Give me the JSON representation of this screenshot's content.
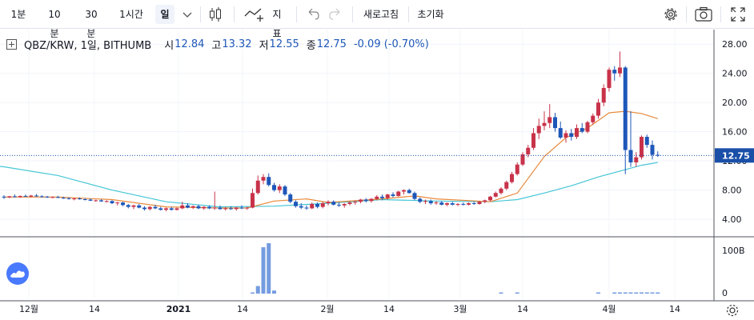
{
  "toolbar": {
    "intervals": [
      "1분",
      "10분",
      "30분",
      "1시간",
      "일"
    ],
    "active_interval": "일",
    "indicators_label": "지표",
    "refresh_label": "새로고침",
    "reset_label": "초기화"
  },
  "legend": {
    "symbol": "QBZ/KRW, 1일, BITHUMB",
    "open_label": "시",
    "open": "12.84",
    "high_label": "고",
    "high": "13.32",
    "low_label": "저",
    "low": "12.55",
    "close_label": "종",
    "close": "12.75",
    "change": "-0.09 (-0.70%)"
  },
  "colors": {
    "up": "#c8334a",
    "down": "#1e57b9",
    "ma_short": "#e8893a",
    "ma_long": "#45c6d6",
    "volume": "#5c8ad9",
    "price_badge": "#1a4fa8"
  },
  "chart_data": {
    "type": "candlestick",
    "price_axis": {
      "ticks": [
        "28.00",
        "24.00",
        "20.00",
        "16.00",
        "12.00",
        "8.00",
        "4.00"
      ],
      "ylim": [
        1.6,
        30.0
      ]
    },
    "volume_axis": {
      "ticks": [
        "100B",
        "0"
      ]
    },
    "current_price_label": "12.75",
    "x_ticks": [
      "12월",
      "14",
      "2021",
      "14",
      "2월",
      "14",
      "3월",
      "14",
      "4월",
      "14"
    ],
    "candles": [
      [
        7.1,
        7.3,
        6.8,
        7.0
      ],
      [
        7.0,
        7.2,
        6.9,
        7.15
      ],
      [
        7.15,
        7.4,
        7.0,
        7.05
      ],
      [
        7.05,
        7.25,
        6.95,
        7.2
      ],
      [
        7.2,
        7.4,
        7.1,
        7.1
      ],
      [
        7.1,
        7.35,
        7.0,
        7.25
      ],
      [
        7.25,
        7.45,
        7.1,
        7.15
      ],
      [
        7.15,
        7.3,
        7.0,
        7.1
      ],
      [
        7.1,
        7.2,
        6.95,
        7.0
      ],
      [
        7.0,
        7.15,
        6.9,
        7.05
      ],
      [
        7.05,
        7.2,
        6.9,
        6.95
      ],
      [
        6.95,
        7.1,
        6.8,
        6.9
      ],
      [
        6.9,
        7.0,
        6.7,
        6.8
      ],
      [
        6.8,
        6.95,
        6.6,
        6.85
      ],
      [
        6.85,
        7.0,
        6.7,
        6.75
      ],
      [
        6.75,
        6.9,
        6.6,
        6.7
      ],
      [
        6.7,
        6.85,
        6.5,
        6.55
      ],
      [
        6.55,
        6.7,
        6.4,
        6.6
      ],
      [
        6.6,
        6.75,
        6.4,
        6.45
      ],
      [
        6.45,
        6.6,
        6.3,
        6.5
      ],
      [
        6.5,
        6.6,
        6.1,
        6.2
      ],
      [
        6.2,
        6.4,
        5.9,
        6.3
      ],
      [
        6.3,
        6.4,
        5.8,
        5.95
      ],
      [
        5.95,
        6.1,
        5.5,
        5.7
      ],
      [
        5.7,
        6.0,
        5.4,
        5.9
      ],
      [
        5.9,
        6.1,
        5.5,
        5.6
      ],
      [
        5.6,
        5.8,
        5.2,
        5.4
      ],
      [
        5.4,
        5.8,
        5.2,
        5.7
      ],
      [
        5.7,
        6.0,
        5.4,
        5.5
      ],
      [
        5.5,
        5.7,
        5.2,
        5.3
      ],
      [
        5.3,
        5.6,
        5.1,
        5.5
      ],
      [
        5.5,
        5.7,
        5.2,
        5.3
      ],
      [
        5.3,
        5.6,
        5.2,
        5.5
      ],
      [
        5.5,
        6.4,
        5.4,
        5.9
      ],
      [
        5.9,
        6.2,
        5.5,
        5.6
      ],
      [
        5.6,
        5.9,
        5.4,
        5.8
      ],
      [
        5.8,
        6.0,
        5.4,
        5.5
      ],
      [
        5.5,
        5.8,
        5.3,
        5.7
      ],
      [
        5.7,
        5.9,
        5.4,
        5.5
      ],
      [
        5.5,
        7.8,
        5.3,
        5.6
      ],
      [
        5.6,
        5.9,
        5.3,
        5.4
      ],
      [
        5.4,
        5.7,
        5.2,
        5.5
      ],
      [
        5.5,
        5.8,
        5.3,
        5.4
      ],
      [
        5.4,
        5.7,
        5.2,
        5.6
      ],
      [
        5.6,
        5.9,
        5.4,
        5.5
      ],
      [
        5.5,
        5.7,
        5.3,
        5.6
      ],
      [
        5.6,
        8.2,
        5.5,
        7.6
      ],
      [
        7.6,
        10.0,
        7.4,
        9.3
      ],
      [
        9.3,
        10.2,
        8.8,
        9.8
      ],
      [
        9.8,
        10.3,
        8.5,
        8.7
      ],
      [
        8.7,
        9.0,
        7.8,
        8.0
      ],
      [
        8.0,
        8.8,
        7.6,
        8.5
      ],
      [
        8.5,
        8.7,
        7.2,
        7.4
      ],
      [
        7.4,
        7.6,
        6.2,
        6.4
      ],
      [
        6.4,
        6.6,
        5.6,
        5.8
      ],
      [
        5.8,
        6.2,
        5.4,
        5.6
      ],
      [
        5.6,
        5.9,
        5.3,
        5.5
      ],
      [
        5.5,
        6.3,
        5.4,
        6.1
      ],
      [
        6.1,
        6.3,
        5.5,
        5.7
      ],
      [
        5.7,
        6.4,
        5.5,
        6.2
      ],
      [
        6.2,
        6.6,
        5.9,
        6.4
      ],
      [
        6.4,
        6.6,
        5.9,
        6.0
      ],
      [
        6.0,
        6.3,
        5.7,
        5.9
      ],
      [
        5.9,
        6.2,
        5.6,
        6.1
      ],
      [
        6.1,
        6.5,
        5.9,
        6.3
      ],
      [
        6.3,
        6.6,
        6.0,
        6.4
      ],
      [
        6.4,
        6.8,
        6.2,
        6.7
      ],
      [
        6.7,
        6.9,
        6.3,
        6.5
      ],
      [
        6.5,
        6.9,
        6.3,
        6.8
      ],
      [
        6.8,
        7.3,
        6.6,
        7.1
      ],
      [
        7.1,
        7.4,
        6.6,
        6.9
      ],
      [
        6.9,
        7.5,
        6.7,
        7.4
      ],
      [
        7.4,
        7.7,
        7.0,
        7.2
      ],
      [
        7.2,
        7.9,
        7.1,
        7.8
      ],
      [
        7.8,
        8.1,
        7.4,
        8.0
      ],
      [
        8.0,
        8.2,
        7.5,
        7.6
      ],
      [
        7.6,
        7.8,
        6.6,
        6.8
      ],
      [
        6.8,
        7.0,
        6.2,
        6.4
      ],
      [
        6.4,
        6.7,
        6.1,
        6.5
      ],
      [
        6.5,
        6.7,
        6.0,
        6.2
      ],
      [
        6.2,
        6.5,
        6.0,
        6.3
      ],
      [
        6.3,
        6.5,
        5.9,
        6.0
      ],
      [
        6.0,
        6.3,
        5.8,
        6.2
      ],
      [
        6.2,
        6.4,
        5.9,
        6.0
      ],
      [
        6.0,
        6.2,
        5.8,
        6.1
      ],
      [
        6.1,
        6.3,
        5.9,
        6.0
      ],
      [
        6.0,
        6.3,
        5.9,
        6.2
      ],
      [
        6.2,
        6.4,
        6.0,
        6.1
      ],
      [
        6.1,
        6.5,
        6.0,
        6.4
      ],
      [
        6.4,
        6.7,
        6.2,
        6.6
      ],
      [
        6.6,
        7.2,
        6.5,
        7.1
      ],
      [
        7.1,
        7.8,
        7.0,
        7.6
      ],
      [
        7.6,
        8.4,
        7.4,
        8.2
      ],
      [
        8.2,
        9.3,
        8.0,
        9.1
      ],
      [
        9.1,
        10.5,
        8.9,
        10.2
      ],
      [
        10.2,
        11.8,
        10.0,
        11.5
      ],
      [
        11.5,
        13.2,
        11.3,
        12.9
      ],
      [
        12.9,
        14.2,
        12.5,
        13.8
      ],
      [
        13.8,
        16.5,
        13.5,
        15.8
      ],
      [
        15.8,
        17.8,
        15.0,
        16.8
      ],
      [
        16.8,
        18.8,
        16.2,
        17.2
      ],
      [
        17.2,
        19.8,
        16.5,
        18.0
      ],
      [
        18.0,
        18.6,
        16.0,
        16.5
      ],
      [
        16.5,
        17.4,
        15.0,
        15.2
      ],
      [
        15.2,
        16.2,
        14.5,
        15.8
      ],
      [
        15.8,
        16.4,
        14.8,
        15.3
      ],
      [
        15.3,
        17.0,
        15.0,
        16.5
      ],
      [
        16.5,
        17.2,
        15.8,
        16.0
      ],
      [
        16.0,
        17.5,
        15.8,
        17.3
      ],
      [
        17.3,
        18.5,
        17.0,
        18.2
      ],
      [
        18.2,
        20.5,
        17.8,
        20.0
      ],
      [
        20.0,
        22.5,
        19.5,
        22.0
      ],
      [
        22.0,
        24.8,
        21.5,
        24.5
      ],
      [
        24.5,
        25.0,
        23.0,
        24.0
      ],
      [
        24.0,
        27.0,
        23.5,
        24.8
      ],
      [
        24.8,
        25.0,
        10.2,
        13.5
      ],
      [
        13.5,
        18.8,
        11.2,
        11.8
      ],
      [
        11.8,
        13.2,
        11.2,
        12.5
      ],
      [
        12.5,
        15.5,
        12.2,
        15.3
      ],
      [
        15.3,
        15.6,
        13.8,
        14.2
      ],
      [
        14.2,
        14.8,
        12.2,
        12.84
      ],
      [
        12.84,
        13.32,
        12.55,
        12.75
      ]
    ],
    "ma_short": [
      [
        0,
        7.05
      ],
      [
        10,
        7.05
      ],
      [
        20,
        6.7
      ],
      [
        30,
        5.7
      ],
      [
        40,
        5.55
      ],
      [
        45,
        5.55
      ],
      [
        50,
        6.5
      ],
      [
        56,
        6.8
      ],
      [
        60,
        6.3
      ],
      [
        70,
        6.8
      ],
      [
        76,
        7.2
      ],
      [
        80,
        6.8
      ],
      [
        90,
        6.4
      ],
      [
        95,
        7.6
      ],
      [
        100,
        12.6
      ],
      [
        104,
        15.2
      ],
      [
        108,
        16.5
      ],
      [
        112,
        18.6
      ],
      [
        115,
        18.8
      ],
      [
        118,
        18.5
      ],
      [
        121,
        17.8
      ]
    ],
    "ma_long": [
      [
        -10,
        12.0
      ],
      [
        0,
        11.2
      ],
      [
        10,
        10.0
      ],
      [
        20,
        8.0
      ],
      [
        30,
        6.4
      ],
      [
        40,
        5.7
      ],
      [
        50,
        5.8
      ],
      [
        60,
        6.2
      ],
      [
        70,
        6.7
      ],
      [
        80,
        6.5
      ],
      [
        90,
        6.4
      ],
      [
        95,
        6.7
      ],
      [
        100,
        7.6
      ],
      [
        105,
        8.6
      ],
      [
        110,
        9.8
      ],
      [
        115,
        10.8
      ],
      [
        118,
        11.4
      ],
      [
        121,
        11.8
      ]
    ],
    "volume": [
      [
        46,
        2
      ],
      [
        47,
        15
      ],
      [
        48,
        92
      ],
      [
        49,
        100
      ],
      [
        50,
        6
      ],
      [
        92,
        1
      ],
      [
        95,
        1
      ],
      [
        110,
        1
      ],
      [
        113,
        1
      ],
      [
        114,
        1
      ],
      [
        115,
        1
      ],
      [
        116,
        1
      ],
      [
        117,
        1
      ],
      [
        118,
        2
      ],
      [
        119,
        2
      ],
      [
        120,
        1
      ],
      [
        121,
        1
      ]
    ]
  }
}
